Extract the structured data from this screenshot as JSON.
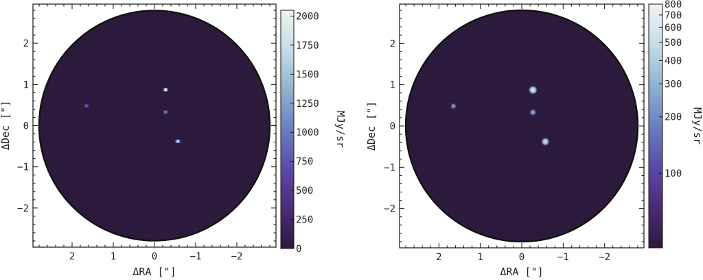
{
  "chart_data": [
    {
      "type": "heatmap",
      "panel": "left",
      "xlabel": "ΔRA [\"]",
      "ylabel": "ΔDec [\"]",
      "xlim": [
        2.95,
        -2.95
      ],
      "ylim": [
        -2.95,
        2.95
      ],
      "xticks": [
        2,
        1,
        0,
        -1,
        -2
      ],
      "xtick_labels": [
        "2",
        "1",
        "0",
        "−1",
        "−2"
      ],
      "yticks": [
        2,
        1,
        0,
        -1,
        -2
      ],
      "ytick_labels": [
        "2",
        "1",
        "0",
        "−1",
        "−2"
      ],
      "aperture_radius": 2.8,
      "colorbar": {
        "label": "MJy/sr",
        "scale": "linear",
        "vmin": 0,
        "vmax": 2050,
        "ticks": [
          0,
          250,
          500,
          750,
          1000,
          1250,
          1500,
          1750,
          2000
        ],
        "tick_labels": [
          "0",
          "250",
          "500",
          "750",
          "1000",
          "1250",
          "1500",
          "1750",
          "2000"
        ]
      },
      "sources": [
        {
          "ra": -0.27,
          "dec": 0.87,
          "value": 1900,
          "size": 0.05
        },
        {
          "ra": -0.57,
          "dec": -0.38,
          "value": 1650,
          "size": 0.07
        },
        {
          "ra": -0.27,
          "dec": 0.33,
          "value": 950,
          "size": 0.05
        },
        {
          "ra": 1.65,
          "dec": 0.48,
          "value": 750,
          "size": 0.05
        }
      ],
      "background_color": "#2c1a3d"
    },
    {
      "type": "heatmap",
      "panel": "right",
      "xlabel": "ΔRA [\"]",
      "ylabel": "ΔDec [\"]",
      "xlim": [
        2.95,
        -2.95
      ],
      "ylim": [
        -2.95,
        2.95
      ],
      "xticks": [
        2,
        1,
        0,
        -1,
        -2
      ],
      "xtick_labels": [
        "2",
        "1",
        "0",
        "−1",
        "−2"
      ],
      "yticks": [
        2,
        1,
        0,
        -1,
        -2
      ],
      "ytick_labels": [
        "2",
        "1",
        "0",
        "−1",
        "−2"
      ],
      "aperture_radius": 2.8,
      "colorbar": {
        "label": "MJy/sr",
        "scale": "log",
        "vmin": 40,
        "vmax": 800,
        "ticks": [
          100,
          200,
          300,
          400,
          500,
          600,
          700,
          800
        ],
        "tick_labels": [
          "100",
          "200",
          "300",
          "400",
          "500",
          "600",
          "700",
          "800"
        ]
      },
      "sources": [
        {
          "ra": -0.27,
          "dec": 0.87,
          "value": 780,
          "size": 0.16
        },
        {
          "ra": -0.57,
          "dec": -0.38,
          "value": 650,
          "size": 0.15
        },
        {
          "ra": -0.27,
          "dec": 0.33,
          "value": 320,
          "size": 0.12
        },
        {
          "ra": 1.65,
          "dec": 0.48,
          "value": 260,
          "size": 0.11
        }
      ],
      "background_color": "#2c1a3d"
    }
  ],
  "colormap": [
    "#2c1a3d",
    "#4b2a78",
    "#5b4aa8",
    "#6a7fc0",
    "#8fb3cf",
    "#c6dde6",
    "#f2f2f2"
  ]
}
